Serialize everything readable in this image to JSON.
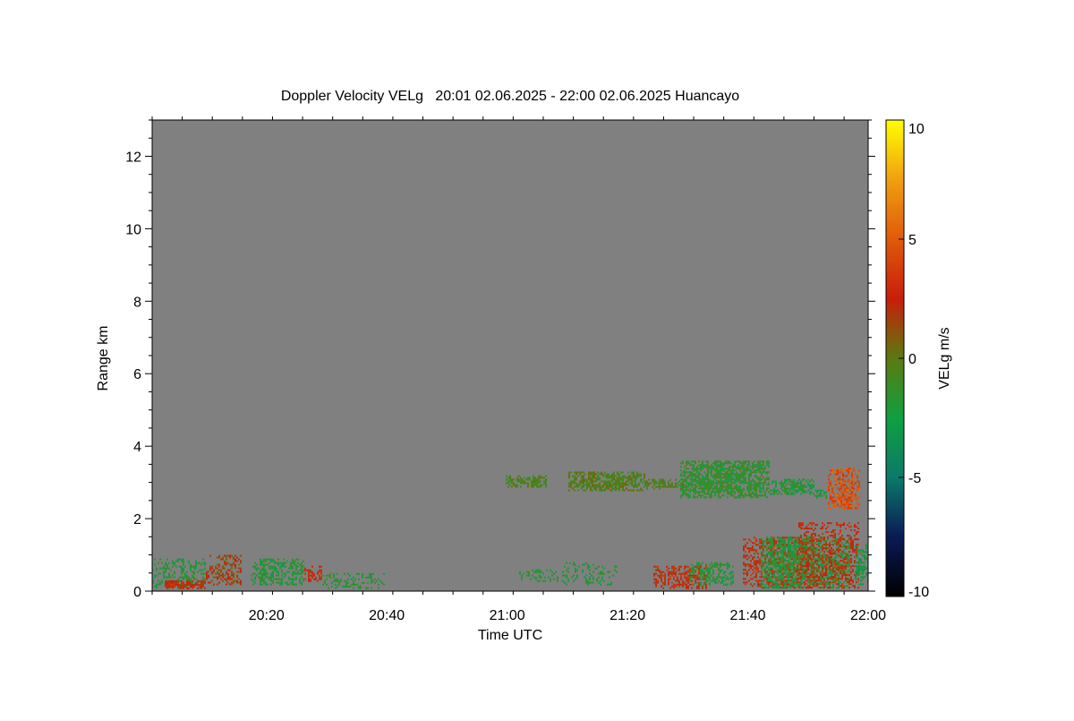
{
  "chart_data": {
    "type": "heatmap",
    "title": "Doppler Velocity VELg   20:01 02.06.2025 - 22:00 02.06.2025 Huancayo",
    "xlabel": "Time UTC",
    "ylabel": "Range km",
    "x_range": [
      "20:01",
      "22:00"
    ],
    "x_ticks": [
      "20:20",
      "20:40",
      "21:00",
      "21:20",
      "21:40",
      "22:00"
    ],
    "y_range": [
      0,
      13
    ],
    "y_ticks": [
      "0",
      "2",
      "4",
      "6",
      "8",
      "10",
      "12"
    ],
    "colorbar": {
      "label": "VELg m/s",
      "range": [
        -10,
        10
      ],
      "ticks": [
        "10",
        "5",
        "0",
        "-5",
        "-10"
      ]
    },
    "background_color": "#808080",
    "colormap": [
      {
        "v": -10,
        "color": "#000000"
      },
      {
        "v": -7.5,
        "color": "#0a1a55"
      },
      {
        "v": -5,
        "color": "#0a7a6a"
      },
      {
        "v": -2.5,
        "color": "#10a040"
      },
      {
        "v": 0,
        "color": "#5a7a10"
      },
      {
        "v": 2.5,
        "color": "#c81e0a"
      },
      {
        "v": 5,
        "color": "#e05a0a"
      },
      {
        "v": 7.5,
        "color": "#f0a010"
      },
      {
        "v": 10,
        "color": "#ffff00"
      }
    ],
    "echo_regions": [
      {
        "x": [
          0,
          60
        ],
        "range_km": [
          0.1,
          0.9
        ],
        "velocity_ms": -2.0,
        "density": 0.45
      },
      {
        "x": [
          10,
          60
        ],
        "range_km": [
          0.1,
          0.3
        ],
        "velocity_ms": 2.5,
        "density": 0.85
      },
      {
        "x": [
          60,
          100
        ],
        "range_km": [
          0.2,
          1.0
        ],
        "velocity_ms": 1.5,
        "density": 0.5
      },
      {
        "x": [
          110,
          170
        ],
        "range_km": [
          0.2,
          0.9
        ],
        "velocity_ms": -2.0,
        "density": 0.55
      },
      {
        "x": [
          170,
          190
        ],
        "range_km": [
          0.3,
          0.7
        ],
        "velocity_ms": 2.5,
        "density": 0.6
      },
      {
        "x": [
          190,
          260
        ],
        "range_km": [
          0.1,
          0.5
        ],
        "velocity_ms": -2.0,
        "density": 0.4
      },
      {
        "x": [
          410,
          450
        ],
        "range_km": [
          0.3,
          0.6
        ],
        "velocity_ms": -2.0,
        "density": 0.4
      },
      {
        "x": [
          450,
          520
        ],
        "range_km": [
          0.2,
          0.8
        ],
        "velocity_ms": -2.0,
        "density": 0.25
      },
      {
        "x": [
          560,
          620
        ],
        "range_km": [
          0.1,
          0.7
        ],
        "velocity_ms": 2.5,
        "density": 0.6
      },
      {
        "x": [
          600,
          650
        ],
        "range_km": [
          0.2,
          0.8
        ],
        "velocity_ms": -2.0,
        "density": 0.5
      },
      {
        "x": [
          660,
          740
        ],
        "range_km": [
          0.1,
          1.5
        ],
        "velocity_ms": 2.5,
        "density": 0.55
      },
      {
        "x": [
          680,
          780
        ],
        "range_km": [
          0.1,
          1.5
        ],
        "velocity_ms": -2.0,
        "density": 0.7
      },
      {
        "x": [
          720,
          790
        ],
        "range_km": [
          0.1,
          1.9
        ],
        "velocity_ms": 2.5,
        "density": 0.45
      },
      {
        "x": [
          785,
          800
        ],
        "range_km": [
          0.2,
          1.3
        ],
        "velocity_ms": -2.5,
        "density": 0.6
      },
      {
        "x": [
          395,
          440
        ],
        "range_km": [
          2.9,
          3.2
        ],
        "velocity_ms": -0.5,
        "density": 0.7
      },
      {
        "x": [
          465,
          550
        ],
        "range_km": [
          2.8,
          3.3
        ],
        "velocity_ms": -0.3,
        "density": 0.8
      },
      {
        "x": [
          550,
          600
        ],
        "range_km": [
          2.85,
          3.1
        ],
        "velocity_ms": -0.5,
        "density": 0.7
      },
      {
        "x": [
          590,
          690
        ],
        "range_km": [
          2.6,
          3.6
        ],
        "velocity_ms": -1.5,
        "density": 0.8
      },
      {
        "x": [
          690,
          740
        ],
        "range_km": [
          2.7,
          3.1
        ],
        "velocity_ms": -2.0,
        "density": 0.7
      },
      {
        "x": [
          740,
          755
        ],
        "range_km": [
          2.6,
          2.8
        ],
        "velocity_ms": -2.0,
        "density": 0.6
      },
      {
        "x": [
          755,
          790
        ],
        "range_km": [
          2.3,
          3.4
        ],
        "velocity_ms": 4.5,
        "density": 0.65
      }
    ]
  }
}
